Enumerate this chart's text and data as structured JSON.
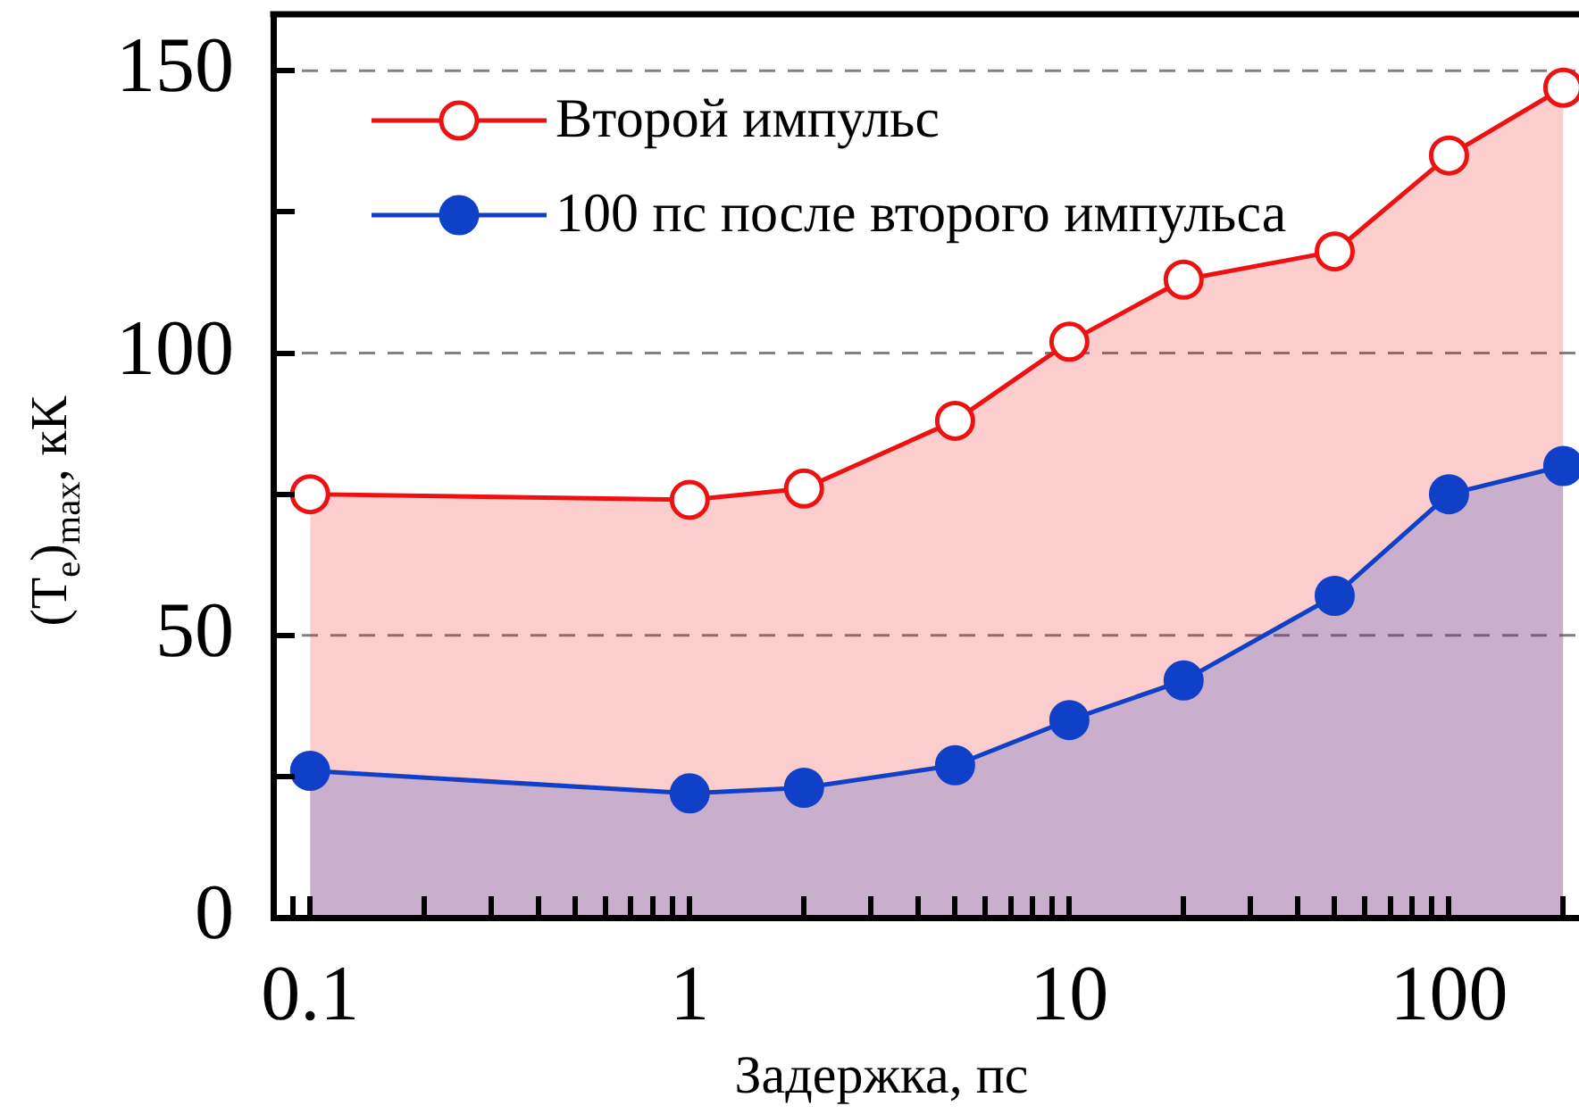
{
  "chart_data": {
    "type": "area",
    "xlabel": "Задержка, пс",
    "ylabel": "(T$_{e}$)$_{max}$, кК",
    "x": [
      0.1,
      1,
      2,
      5,
      10,
      20,
      50,
      100,
      200
    ],
    "series": [
      {
        "name": "Второй импульс",
        "color": "#ee1111",
        "values": [
          75,
          74,
          76,
          88,
          102,
          113,
          118,
          135,
          147
        ]
      },
      {
        "name": "100 пс после второго импульса",
        "color": "#1040c8",
        "values": [
          26,
          22,
          23,
          27,
          35,
          42,
          57,
          75,
          80
        ]
      }
    ],
    "log": "x",
    "xlim": [
      0.08,
      220
    ],
    "xticks": [
      {
        "value": 0.09,
        "label": null
      },
      0.1,
      {
        "value": 0.2,
        "label": null
      },
      {
        "value": 0.3,
        "label": null
      },
      {
        "value": 0.4,
        "label": null
      },
      {
        "value": 0.5,
        "label": null
      },
      {
        "value": 0.6,
        "label": null
      },
      {
        "value": 0.7,
        "label": null
      },
      {
        "value": 0.8,
        "label": null
      },
      {
        "value": 0.9,
        "label": null
      },
      1,
      {
        "value": 2,
        "label": null
      },
      {
        "value": 3,
        "label": null
      },
      {
        "value": 4,
        "label": null
      },
      {
        "value": 5,
        "label": null
      },
      {
        "value": 6,
        "label": null
      },
      {
        "value": 7,
        "label": null
      },
      {
        "value": 8,
        "label": null
      },
      {
        "value": 9,
        "label": null
      },
      10,
      {
        "value": 20,
        "label": null
      },
      {
        "value": 30,
        "label": null
      },
      {
        "value": 40,
        "label": null
      },
      {
        "value": 50,
        "label": null
      },
      {
        "value": 60,
        "label": null
      },
      {
        "value": 70,
        "label": null
      },
      {
        "value": 80,
        "label": null
      },
      {
        "value": 90,
        "label": null
      },
      100,
      {
        "value": 200,
        "label": null
      }
    ],
    "ylim": [
      0,
      160
    ],
    "yticks": [
      0,
      {
        "value": 25,
        "label": null
      },
      50,
      {
        "value": 75,
        "label": null
      },
      100,
      {
        "value": 125,
        "label": null
      },
      150
    ],
    "grid": "y",
    "legend": "top left",
    "marker": "circle",
    "line_style": "solid"
  }
}
